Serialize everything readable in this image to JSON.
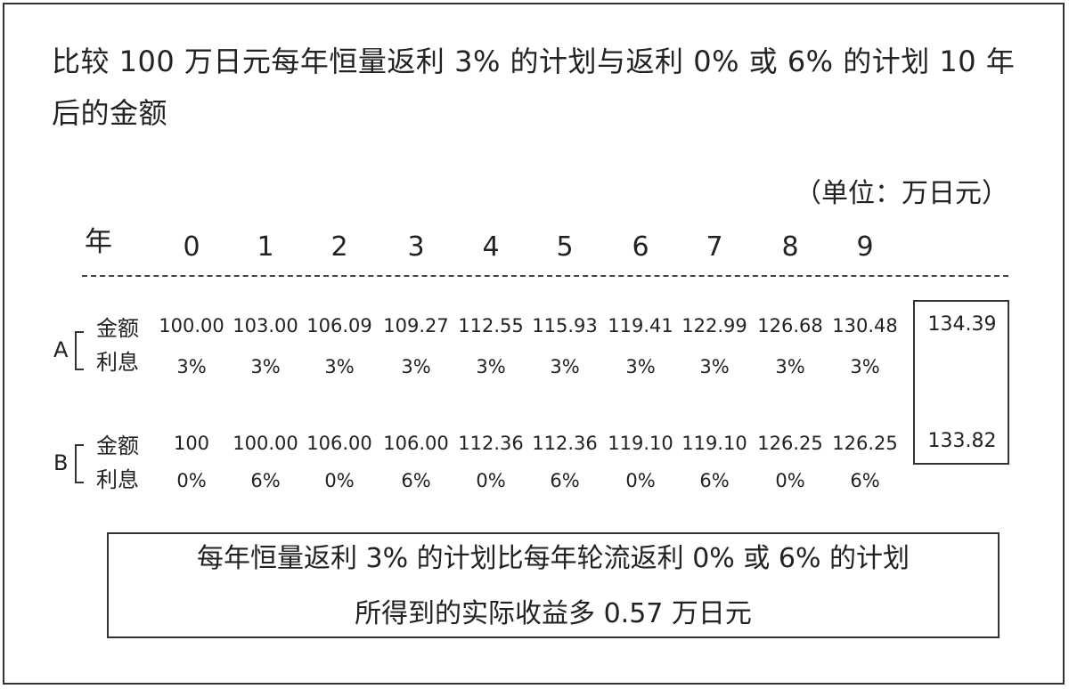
{
  "title": "比较 100 万日元每年恒量返利 3% 的计划与返利 0% 或 6% 的计划 10 年后的金额",
  "unit": "（单位：万日元）",
  "year_label": "年",
  "years": [
    "0",
    "1",
    "2",
    "3",
    "4",
    "5",
    "6",
    "7",
    "8",
    "9"
  ],
  "amount_label": "金额",
  "rate_label": "利息",
  "plan_a": {
    "name": "A",
    "amounts": [
      "100.00",
      "103.00",
      "106.09",
      "109.27",
      "112.55",
      "115.93",
      "119.41",
      "122.99",
      "126.68",
      "130.48"
    ],
    "rates": [
      "3%",
      "3%",
      "3%",
      "3%",
      "3%",
      "3%",
      "3%",
      "3%",
      "3%",
      "3%"
    ],
    "final": "134.39"
  },
  "plan_b": {
    "name": "B",
    "amounts": [
      "100",
      "100.00",
      "106.00",
      "106.00",
      "112.36",
      "112.36",
      "119.10",
      "119.10",
      "126.25",
      "126.25"
    ],
    "rates": [
      "0%",
      "6%",
      "0%",
      "6%",
      "0%",
      "6%",
      "0%",
      "6%",
      "0%",
      "6%"
    ],
    "final": "133.82"
  },
  "conclusion": {
    "line1": "每年恒量返利 3% 的计划比每年轮流返利 0% 或 6% 的计划",
    "line2": "所得到的实际收益多 0.57 万日元"
  }
}
